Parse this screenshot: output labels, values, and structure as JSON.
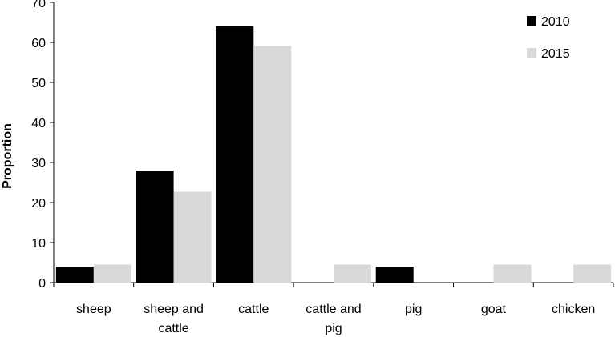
{
  "chart_data": {
    "type": "bar",
    "title": "",
    "xlabel": "",
    "ylabel": "Proportion",
    "ylim": [
      0,
      70
    ],
    "yticks": [
      0,
      10,
      20,
      30,
      40,
      50,
      60,
      70
    ],
    "grid": false,
    "legend_position": "top-right",
    "categories": [
      [
        "sheep"
      ],
      [
        "sheep and",
        "cattle"
      ],
      [
        "cattle"
      ],
      [
        "cattle and",
        "pig"
      ],
      [
        "pig"
      ],
      [
        "goat"
      ],
      [
        "chicken"
      ]
    ],
    "series": [
      {
        "name": "2010",
        "color": "#000000",
        "values": [
          4,
          28,
          64,
          0,
          4,
          0,
          0
        ]
      },
      {
        "name": "2015",
        "color": "#d9d9d9",
        "values": [
          4.5,
          22.7,
          59.1,
          4.5,
          0,
          4.5,
          4.5
        ]
      }
    ]
  }
}
